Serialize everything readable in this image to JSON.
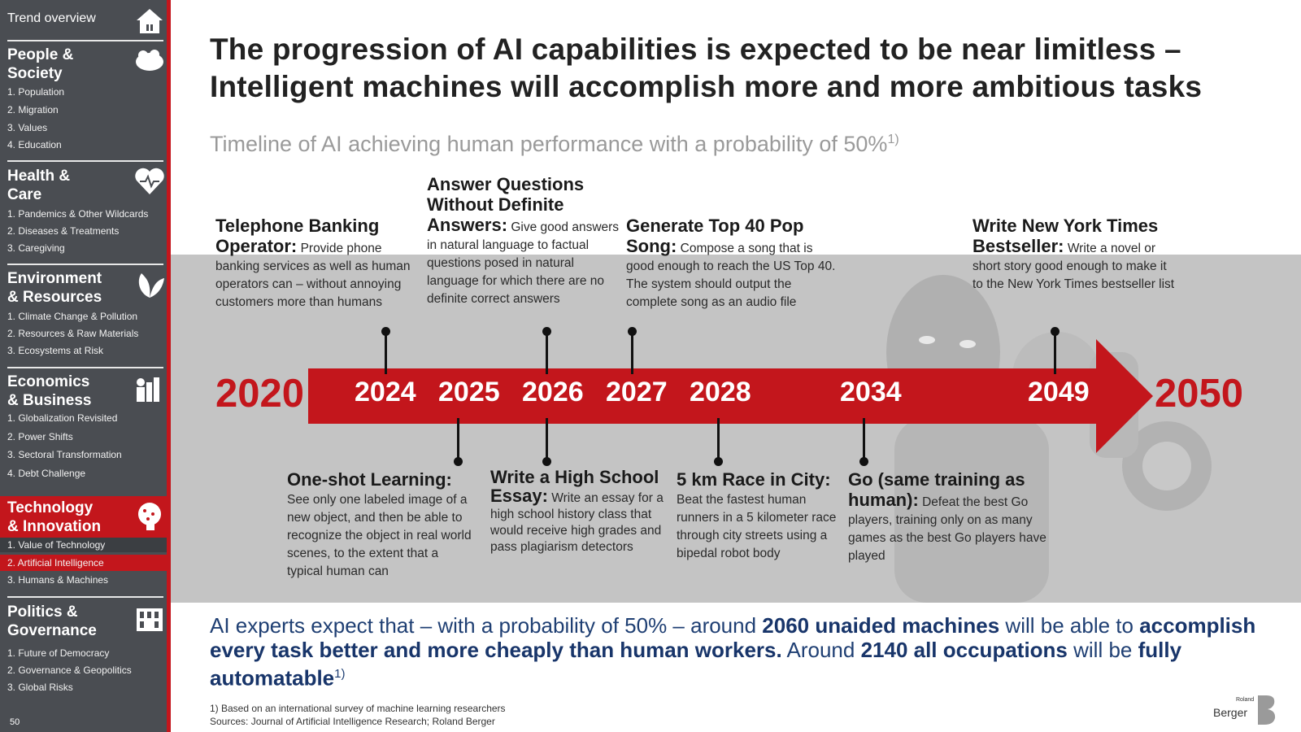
{
  "sidebar": {
    "trend_label": "Trend overview",
    "page_number": "50",
    "sections": [
      {
        "title": "People &\nSociety",
        "icon": "people-icon",
        "items": [
          "1. Population",
          "2. Migration",
          "3. Values",
          "4. Education"
        ]
      },
      {
        "title": "Health &\nCare",
        "icon": "heart-icon",
        "items": [
          "1. Pandemics & Other Wildcards",
          "2. Diseases & Treatments",
          "3. Caregiving"
        ]
      },
      {
        "title": "Environment\n& Resources",
        "icon": "leaf-icon",
        "items": [
          "1. Climate Change & Pollution",
          "2. Resources & Raw Materials",
          "3. Ecosystems at Risk"
        ]
      },
      {
        "title": "Economics\n& Business",
        "icon": "factory-icon",
        "items": [
          "1. Globalization Revisited",
          "2. Power Shifts",
          "3. Sectoral Transformation",
          "4. Debt Challenge"
        ]
      },
      {
        "title": "Technology\n& Innovation",
        "icon": "brain-icon",
        "active": true,
        "items": [
          "1. Value of Technology",
          "2. Artificial Intelligence",
          "3. Humans & Machines"
        ],
        "active_item": 1
      },
      {
        "title": "Politics &\nGovernance",
        "icon": "building-icon",
        "items": [
          "1. Future of Democracy",
          "2. Governance & Geopolitics",
          "3. Global Risks"
        ]
      }
    ],
    "colors": {
      "background": "#4a4d52",
      "accent": "#c3161c"
    }
  },
  "main": {
    "title": "The progression of AI capabilities is expected to be near limitless – Intelligent machines will accomplish more and more ambitious tasks",
    "subtitle": "Timeline of AI achieving human performance with a probability of 50%",
    "subtitle_note": "1)",
    "timeline": {
      "start_year": "2020",
      "end_year": "2050",
      "years": [
        "2024",
        "2025",
        "2026",
        "2027",
        "2028",
        "2034",
        "2049"
      ],
      "milestones": [
        {
          "year": "2024",
          "head": "Telephone Banking Operator:",
          "text": "Provide phone banking services as well as human operators can – without annoying customers more than humans"
        },
        {
          "year": "2025",
          "head": "One-shot Learning:",
          "text": "See only one labeled image of a new object, and then be able to recognize the object in real world scenes, to the extent that a typical human can"
        },
        {
          "year": "2026",
          "head": "Answer Questions Without Definite Answers:",
          "text": "Give good answers in natural language to factual questions posed in natural language for which there are no definite correct answers"
        },
        {
          "year": "2026",
          "head": "Write a High School Essay:",
          "text": "Write an essay for a high school history class that would receive high grades and pass plagiarism detectors"
        },
        {
          "year": "2027",
          "head": "Generate Top 40 Pop Song:",
          "text": "Compose a song that is good enough to reach the US Top 40. The system should output the complete song as an audio file"
        },
        {
          "year": "2028",
          "head": "5 km Race in City:",
          "text": "Beat the fastest human runners in a 5 kilometer race through city streets using a bipedal robot body"
        },
        {
          "year": "2034",
          "head": "Go (same training as human):",
          "text": "Defeat the best Go players, training only on as many games as the best Go players have played"
        },
        {
          "year": "2049",
          "head": "Write New York Times Bestseller:",
          "text": "Write a novel or short story good enough to make it to the New York Times bestseller list"
        }
      ],
      "arrow_color": "#c3161c"
    },
    "conclusion": {
      "p1": "AI experts expect that – with a probability of 50% – around ",
      "b1": "2060 unaided machines",
      "p2": " will be able to ",
      "b2": "accomplish every task better and more cheaply than human workers.",
      "p3": " Around ",
      "b3": "2140 all occupations",
      "p4": " will be ",
      "b4": "fully automatable",
      "note": "1)"
    },
    "footnote": "1) Based on an international survey of machine learning researchers",
    "sources": "Sources: Journal of Artificial Intelligence Research; Roland Berger",
    "logo": {
      "small": "Roland",
      "big": "Berger"
    }
  }
}
